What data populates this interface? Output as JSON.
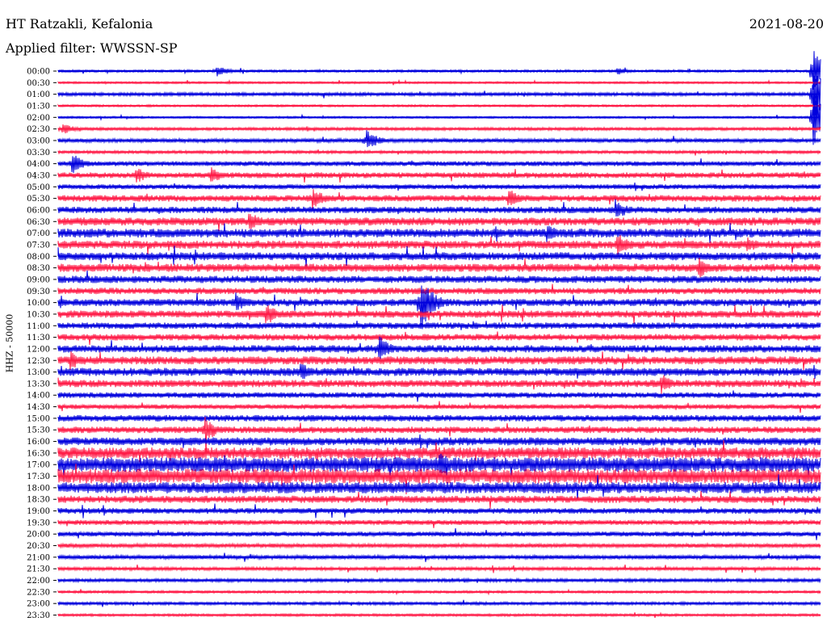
{
  "header": {
    "station": "HT Ratzakli, Kefalonia",
    "filter": "Applied filter: WWSSN-SP",
    "date": "2021-08-20"
  },
  "side_label": "HHZ - 50000",
  "chart_data": {
    "type": "line",
    "title": "HT Ratzakli, Kefalonia",
    "subtitle": "Applied filter: WWSSN-SP",
    "date": "2021-08-20",
    "ylabel": "HHZ - 50000",
    "row_labels": [
      "00:00",
      "00:30",
      "01:00",
      "01:30",
      "02:00",
      "02:30",
      "03:00",
      "03:30",
      "04:00",
      "04:30",
      "05:00",
      "05:30",
      "06:00",
      "06:30",
      "07:00",
      "07:30",
      "08:00",
      "08:30",
      "09:00",
      "09:30",
      "10:00",
      "10:30",
      "11:00",
      "11:30",
      "12:00",
      "12:30",
      "13:00",
      "13:30",
      "14:00",
      "14:30",
      "15:00",
      "15:30",
      "16:00",
      "16:30",
      "17:00",
      "17:30",
      "18:00",
      "18:30",
      "19:00",
      "19:30",
      "20:00",
      "20:30",
      "21:00",
      "21:30",
      "22:00",
      "22:30",
      "23:00",
      "23:30"
    ],
    "series": [
      {
        "name": "",
        "color": "#0000dd"
      },
      {
        "name": "",
        "color": "#ff1c48"
      }
    ],
    "row_noise_levels": [
      1.5,
      1.2,
      2,
      1.3,
      1.2,
      1.8,
      2.5,
      1.8,
      3,
      3.5,
      3,
      4,
      4,
      5,
      5.5,
      5,
      5,
      5,
      4.5,
      4,
      4.5,
      4.5,
      4,
      4,
      4.5,
      5,
      5,
      4.5,
      3.5,
      3,
      4,
      4,
      5,
      7,
      9,
      9,
      7,
      4.5,
      3.5,
      3,
      3,
      2.5,
      2.5,
      2,
      2,
      1.5,
      1.8,
      1.5
    ],
    "events": [
      {
        "time": "00:00",
        "x_fraction": 0.207,
        "amplitude": 8
      },
      {
        "time": "00:00",
        "x_fraction": 0.733,
        "amplitude": 5
      },
      {
        "time": "00:00",
        "x_fraction": 0.99,
        "amplitude": 30
      },
      {
        "time": "01:00",
        "x_fraction": 0.99,
        "amplitude": 40
      },
      {
        "time": "02:00",
        "x_fraction": 0.99,
        "amplitude": 40
      },
      {
        "time": "02:30",
        "x_fraction": 0.005,
        "amplitude": 8
      },
      {
        "time": "03:00",
        "x_fraction": 0.404,
        "amplitude": 14
      },
      {
        "time": "04:00",
        "x_fraction": 0.018,
        "amplitude": 14
      },
      {
        "time": "04:30",
        "x_fraction": 0.101,
        "amplitude": 12
      },
      {
        "time": "04:30",
        "x_fraction": 0.2,
        "amplitude": 12
      },
      {
        "time": "05:30",
        "x_fraction": 0.333,
        "amplitude": 16
      },
      {
        "time": "05:30",
        "x_fraction": 0.59,
        "amplitude": 14
      },
      {
        "time": "06:00",
        "x_fraction": 0.73,
        "amplitude": 16
      },
      {
        "time": "06:30",
        "x_fraction": 0.25,
        "amplitude": 14
      },
      {
        "time": "07:00",
        "x_fraction": 0.64,
        "amplitude": 14
      },
      {
        "time": "07:30",
        "x_fraction": 0.733,
        "amplitude": 16
      },
      {
        "time": "07:30",
        "x_fraction": 0.903,
        "amplitude": 12
      },
      {
        "time": "08:30",
        "x_fraction": 0.84,
        "amplitude": 14
      },
      {
        "time": "10:00",
        "x_fraction": 0.232,
        "amplitude": 14
      },
      {
        "time": "10:00",
        "x_fraction": 0.475,
        "amplitude": 40
      },
      {
        "time": "10:30",
        "x_fraction": 0.272,
        "amplitude": 16
      },
      {
        "time": "12:00",
        "x_fraction": 0.42,
        "amplitude": 18
      },
      {
        "time": "12:30",
        "x_fraction": 0.015,
        "amplitude": 14
      },
      {
        "time": "13:00",
        "x_fraction": 0.317,
        "amplitude": 14
      },
      {
        "time": "13:30",
        "x_fraction": 0.79,
        "amplitude": 14
      },
      {
        "time": "15:30",
        "x_fraction": 0.192,
        "amplitude": 18
      },
      {
        "time": "17:00",
        "x_fraction": 0.5,
        "amplitude": 20
      }
    ]
  }
}
